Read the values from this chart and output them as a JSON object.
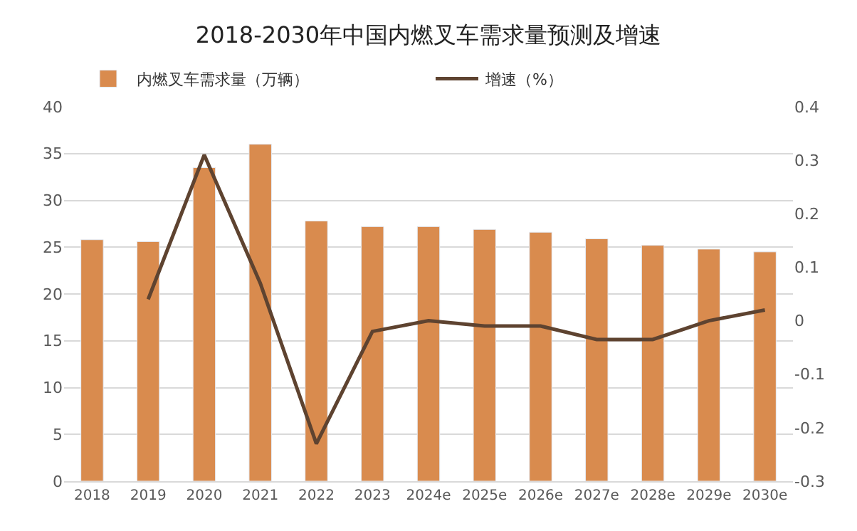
{
  "chart_data": {
    "type": "bar",
    "title": "2018-2030年中国内燃叉车需求量预测及增速",
    "categories": [
      "2018",
      "2019",
      "2020",
      "2021",
      "2022",
      "2023",
      "2024e",
      "2025e",
      "2026e",
      "2027e",
      "2028e",
      "2029e",
      "2030e"
    ],
    "series": [
      {
        "name": "内燃叉车需求量（万辆）",
        "color": "#d98b4e",
        "values": [
          25.8,
          25.6,
          33.5,
          36.0,
          27.8,
          27.2,
          27.2,
          26.9,
          26.6,
          25.9,
          25.2,
          24.8,
          24.5
        ]
      },
      {
        "name": "增速（%）",
        "type": "line",
        "axis": "y2",
        "color": "#5e4330",
        "values": [
          null,
          0.04,
          0.31,
          0.07,
          -0.23,
          -0.02,
          0.0,
          -0.01,
          -0.01,
          -0.035,
          -0.035,
          0.0,
          0.02
        ]
      }
    ],
    "ylim": [
      0,
      40
    ],
    "yticks": [
      0,
      5,
      10,
      15,
      20,
      25,
      30,
      35,
      40
    ],
    "y2lim": [
      -0.3,
      0.4
    ],
    "y2ticks": [
      -0.3,
      -0.2,
      -0.1,
      0,
      0.1,
      0.2,
      0.3,
      0.4
    ],
    "grid": "y",
    "legend": "top",
    "marker": "none",
    "line_style": "solid"
  }
}
